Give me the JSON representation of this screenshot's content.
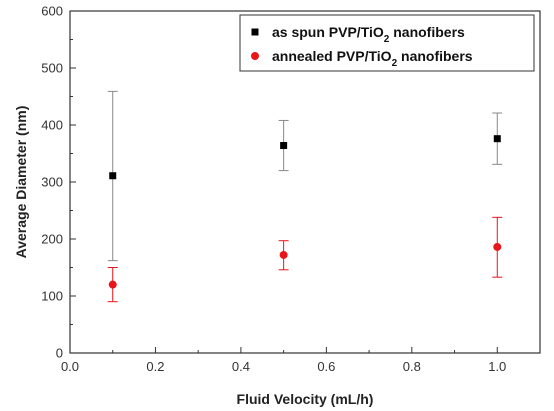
{
  "chart_data": {
    "type": "scatter",
    "title": "",
    "xlabel": "Fluid Velocity (mL/h)",
    "ylabel": "Average Diameter (nm)",
    "xlim": [
      0.0,
      1.1
    ],
    "ylim": [
      0,
      600
    ],
    "x_ticks": [
      "0.0",
      "0.2",
      "0.4",
      "0.6",
      "0.8",
      "1.0"
    ],
    "y_ticks": [
      "0",
      "100",
      "200",
      "300",
      "400",
      "500",
      "600"
    ],
    "grid": false,
    "legend_position": "top-right",
    "series": [
      {
        "name_parts": [
          "as spun PVP/TiO",
          "2",
          " nanofibers"
        ],
        "marker": "square",
        "color": "#000000",
        "error_color": "#888888",
        "x": [
          0.1,
          0.5,
          1.0
        ],
        "y": [
          311,
          364,
          376
        ],
        "y_lower": [
          162,
          320,
          331
        ],
        "y_upper": [
          459,
          408,
          421
        ]
      },
      {
        "name_parts": [
          "annealed PVP/TiO",
          "2",
          " nanofibers"
        ],
        "marker": "circle",
        "color": "#e8161b",
        "error_color": "#e8161b",
        "x": [
          0.1,
          0.5,
          1.0
        ],
        "y": [
          120,
          172,
          186
        ],
        "y_lower": [
          90,
          146,
          133
        ],
        "y_upper": [
          150,
          197,
          238
        ]
      }
    ]
  }
}
